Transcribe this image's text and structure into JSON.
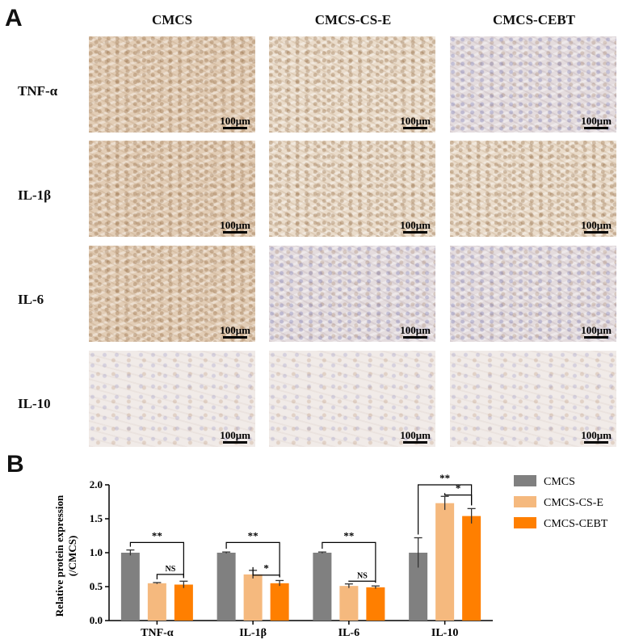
{
  "panel_a": {
    "letter": "A",
    "columns": [
      "CMCS",
      "CMCS-CS-E",
      "CMCS-CEBT"
    ],
    "rows": [
      "TNF-α",
      "IL-1β",
      "IL-6",
      "IL-10"
    ],
    "scale_bar_label": "100μm"
  },
  "panel_b": {
    "letter": "B"
  },
  "chart_data": {
    "type": "bar",
    "categories": [
      "TNF-α",
      "IL-1β",
      "IL-6",
      "IL-10"
    ],
    "series": [
      {
        "name": "CMCS",
        "color": "#808080",
        "values": [
          1.0,
          1.0,
          1.0,
          1.0
        ],
        "errors": [
          0.04,
          0.01,
          0.01,
          0.22
        ]
      },
      {
        "name": "CMCS-CS-E",
        "color": "#f5b97e",
        "values": [
          0.55,
          0.68,
          0.51,
          1.73
        ],
        "errors": [
          0.01,
          0.06,
          0.03,
          0.1
        ]
      },
      {
        "name": "CMCS-CEBT",
        "color": "#ff7f00",
        "values": [
          0.53,
          0.55,
          0.49,
          1.54
        ],
        "errors": [
          0.05,
          0.04,
          0.02,
          0.11
        ]
      }
    ],
    "ylabel": "Relative protein expression\n(/CMCS)",
    "ylabel_lines": [
      "Relative protein expression",
      "(/CMCS)"
    ],
    "xlabel": "",
    "ylim": [
      0,
      2.0
    ],
    "yticks": [
      "0.0",
      "0.5",
      "1.0",
      "1.5",
      "2.0"
    ],
    "legend_position": "right",
    "significance": [
      {
        "category": "TNF-α",
        "from": 0,
        "to": 2,
        "level": 1.15,
        "label": "**"
      },
      {
        "category": "TNF-α",
        "from": 1,
        "to": 2,
        "level": 0.68,
        "label": "NS"
      },
      {
        "category": "IL-1β",
        "from": 0,
        "to": 2,
        "level": 1.15,
        "label": "**"
      },
      {
        "category": "IL-1β",
        "from": 1,
        "to": 2,
        "level": 0.67,
        "label": "*"
      },
      {
        "category": "IL-6",
        "from": 0,
        "to": 2,
        "level": 1.15,
        "label": "**"
      },
      {
        "category": "IL-6",
        "from": 1,
        "to": 2,
        "level": 0.58,
        "label": "NS"
      },
      {
        "category": "IL-10",
        "from": 0,
        "to": 2,
        "level": 2.0,
        "label": "**"
      },
      {
        "category": "IL-10",
        "from": 1,
        "to": 2,
        "level": 1.85,
        "label": "*"
      }
    ]
  }
}
